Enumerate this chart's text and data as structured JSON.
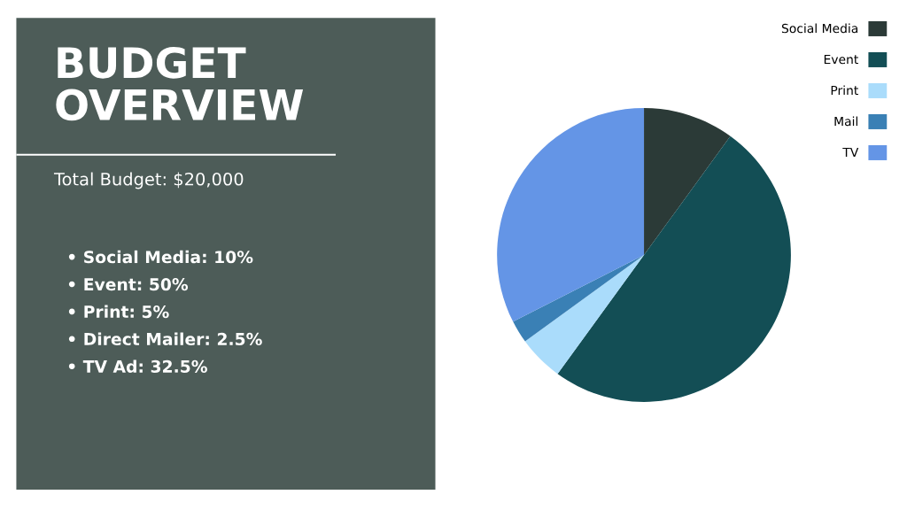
{
  "chart_data": [
    {
      "type": "other",
      "title": "BUDGET\nOVERVIEW",
      "subtitle": "Total Budget: $20,000",
      "color": "#4d5c58",
      "annotations": [
        "• Social Media: 10%",
        "• Event: 50%",
        "• Print: 5%",
        "• Direct Mailer: 2.5%",
        "• TV Ad: 32.5%"
      ]
    },
    {
      "type": "pie",
      "categories": [
        "Social Media",
        "Event",
        "Print",
        "Mail",
        "TV"
      ],
      "values": [
        10,
        50,
        5,
        2.5,
        32.5
      ],
      "colors": [
        "#2b3a37",
        "#134e55",
        "#aadcfb",
        "#3a80b5",
        "#6495e6"
      ],
      "legend": "top right"
    }
  ]
}
